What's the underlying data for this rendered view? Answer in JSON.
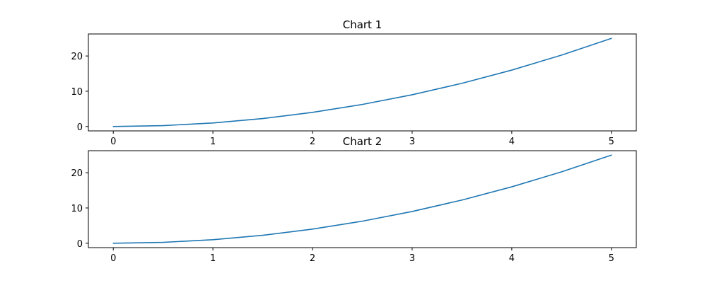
{
  "chart_data": [
    {
      "type": "line",
      "title": "Chart 1",
      "xlabel": "",
      "ylabel": "",
      "x": [
        0,
        0.5,
        1,
        1.5,
        2,
        2.5,
        3,
        3.5,
        4,
        4.5,
        5
      ],
      "series": [
        {
          "values": [
            0,
            0.25,
            1,
            2.25,
            4,
            6.25,
            9,
            12.25,
            16,
            20.25,
            25
          ],
          "color": "#1f77b4"
        }
      ],
      "xlim": [
        -0.25,
        5.25
      ],
      "ylim": [
        -1.25,
        26.25
      ],
      "xticks": [
        "0",
        "1",
        "2",
        "3",
        "4",
        "5"
      ],
      "yticks": [
        "0",
        "10",
        "20"
      ],
      "grid": false
    },
    {
      "type": "line",
      "title": "Chart 2",
      "xlabel": "",
      "ylabel": "",
      "x": [
        0,
        0.5,
        1,
        1.5,
        2,
        2.5,
        3,
        3.5,
        4,
        4.5,
        5
      ],
      "series": [
        {
          "values": [
            0,
            0.25,
            1,
            2.25,
            4,
            6.25,
            9,
            12.25,
            16,
            20.25,
            25
          ],
          "color": "#1f77b4"
        }
      ],
      "xlim": [
        -0.25,
        5.25
      ],
      "ylim": [
        -1.25,
        26.25
      ],
      "xticks": [
        "0",
        "1",
        "2",
        "3",
        "4",
        "5"
      ],
      "yticks": [
        "0",
        "10",
        "20"
      ],
      "grid": false
    }
  ]
}
